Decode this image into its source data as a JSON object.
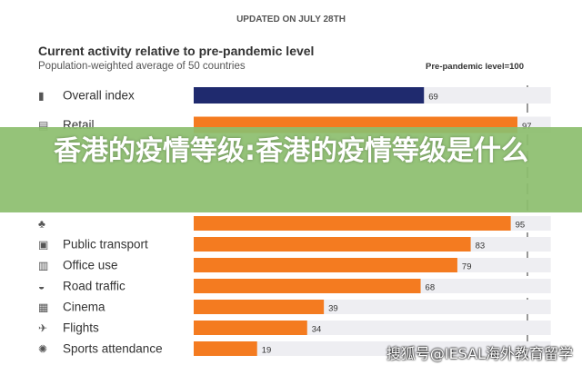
{
  "chart_data": {
    "type": "bar",
    "orientation": "horizontal",
    "updated": "UPDATED ON JULY 28TH",
    "title": "Current activity relative to pre-pandemic level",
    "subtitle": "Population-weighted average of 50 countries",
    "reference_label": "Pre-pandemic level=100",
    "reference_value": 100,
    "xlim": [
      0,
      107
    ],
    "categories": [
      "Overall index",
      "Retail",
      "",
      "Public transport",
      "Office use",
      "Road traffic",
      "Cinema",
      "Flights",
      "Sports attendance"
    ],
    "values": [
      69,
      97,
      95,
      83,
      79,
      68,
      39,
      34,
      19
    ],
    "icons": [
      "bar-chart-icon",
      "shop-icon",
      "tree-icon",
      "bus-icon",
      "office-building-icon",
      "car-icon",
      "film-icon",
      "airplane-icon",
      "ball-icon"
    ],
    "colors": {
      "overall": "#1f2a6e",
      "others": "#f47b20",
      "track": "#eeeef2"
    }
  },
  "overlay": {
    "headline": "香港的疫情等级:香港的疫情等级是什么",
    "watermark": "搜狐号@IESAL海外教育留学"
  }
}
